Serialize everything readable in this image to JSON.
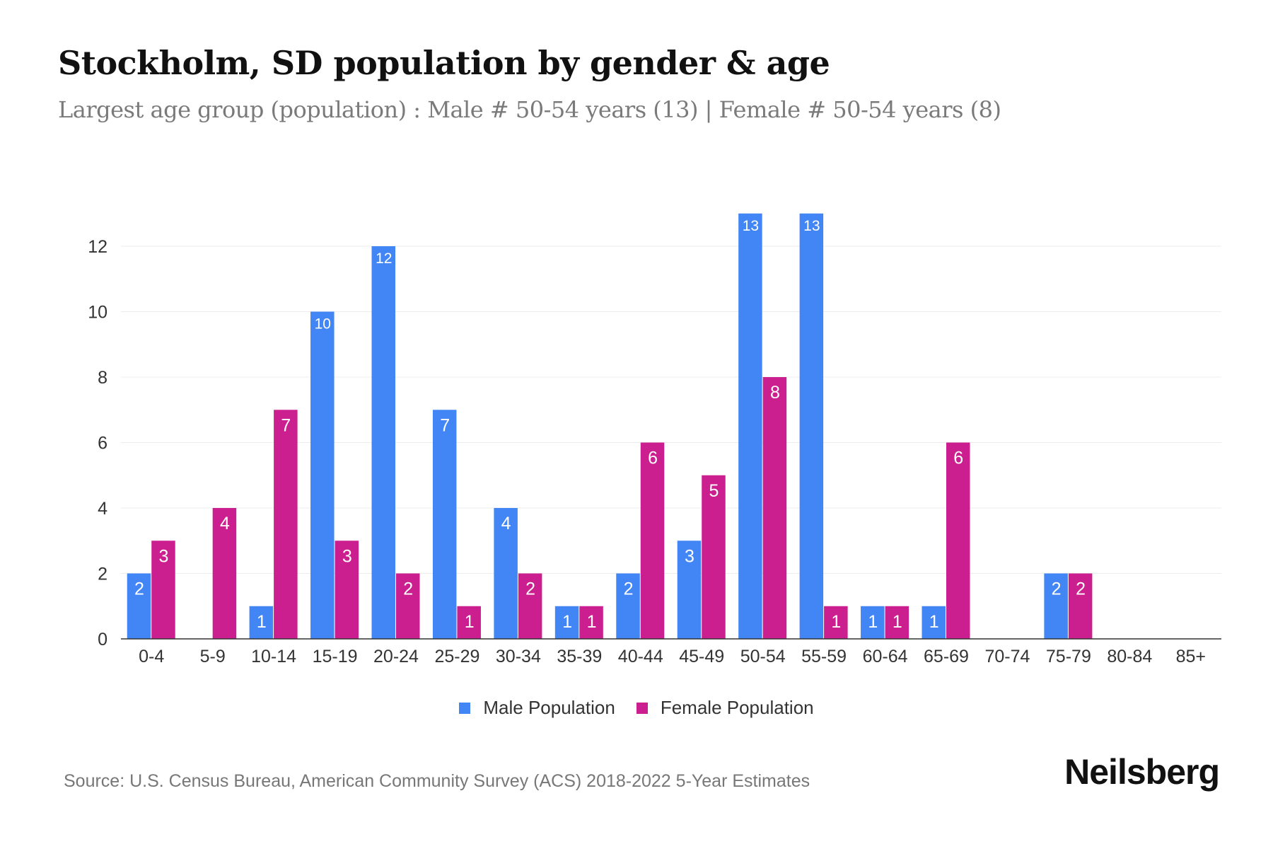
{
  "title": "Stockholm, SD population by gender & age",
  "subtitle": "Largest age group (population) : Male # 50-54 years (13) | Female # 50-54 years (8)",
  "source": "Source: U.S. Census Bureau, American Community Survey (ACS) 2018-2022 5-Year Estimates",
  "logo": "Neilsberg",
  "chart_data": {
    "type": "bar",
    "title": "Stockholm, SD population by gender & age",
    "xlabel": "",
    "ylabel": "",
    "ylim": [
      0,
      13
    ],
    "yticks": [
      0,
      2,
      4,
      6,
      8,
      10,
      12
    ],
    "grid": true,
    "legend_position": "bottom-center",
    "categories": [
      "0-4",
      "5-9",
      "10-14",
      "15-19",
      "20-24",
      "25-29",
      "30-34",
      "35-39",
      "40-44",
      "45-49",
      "50-54",
      "55-59",
      "60-64",
      "65-69",
      "70-74",
      "75-79",
      "80-84",
      "85+"
    ],
    "series": [
      {
        "name": "Male Population",
        "color": "#4285f4",
        "values": [
          2,
          0,
          1,
          10,
          12,
          7,
          4,
          1,
          2,
          3,
          13,
          13,
          1,
          1,
          0,
          2,
          0,
          0
        ]
      },
      {
        "name": "Female Population",
        "color": "#cc1f8f",
        "values": [
          3,
          4,
          7,
          3,
          2,
          1,
          2,
          1,
          6,
          5,
          8,
          1,
          1,
          6,
          0,
          2,
          0,
          0
        ]
      }
    ]
  }
}
